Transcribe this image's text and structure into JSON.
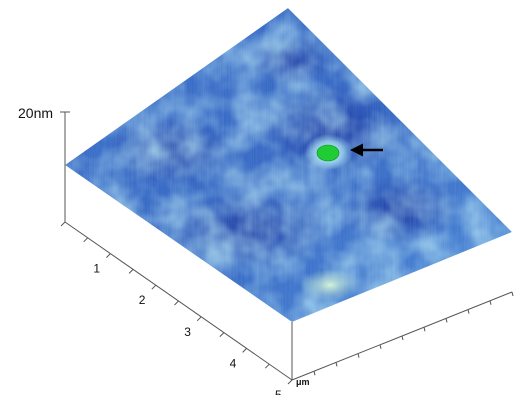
{
  "chart_data": {
    "type": "heatmap",
    "title": "",
    "z_scale_label": "20nm",
    "axis_unit_label": "μm",
    "x_axis": {
      "ticks": [
        "1",
        "2",
        "3",
        "4",
        "5"
      ],
      "range": [
        0,
        5
      ]
    },
    "y_axis": {
      "ticks": [],
      "range": [
        0,
        5
      ]
    },
    "z_axis": {
      "range": [
        0,
        20
      ],
      "unit": "nm"
    },
    "surface_colors": {
      "low": "#1d3fae",
      "mid": "#4a82d6",
      "high": "#aee0f0",
      "peak": "#9fe6c6"
    },
    "feature": {
      "description_color": "#1fcc33",
      "position": [
        1.4,
        3.1
      ],
      "marker": "arrow"
    },
    "grid": false
  }
}
